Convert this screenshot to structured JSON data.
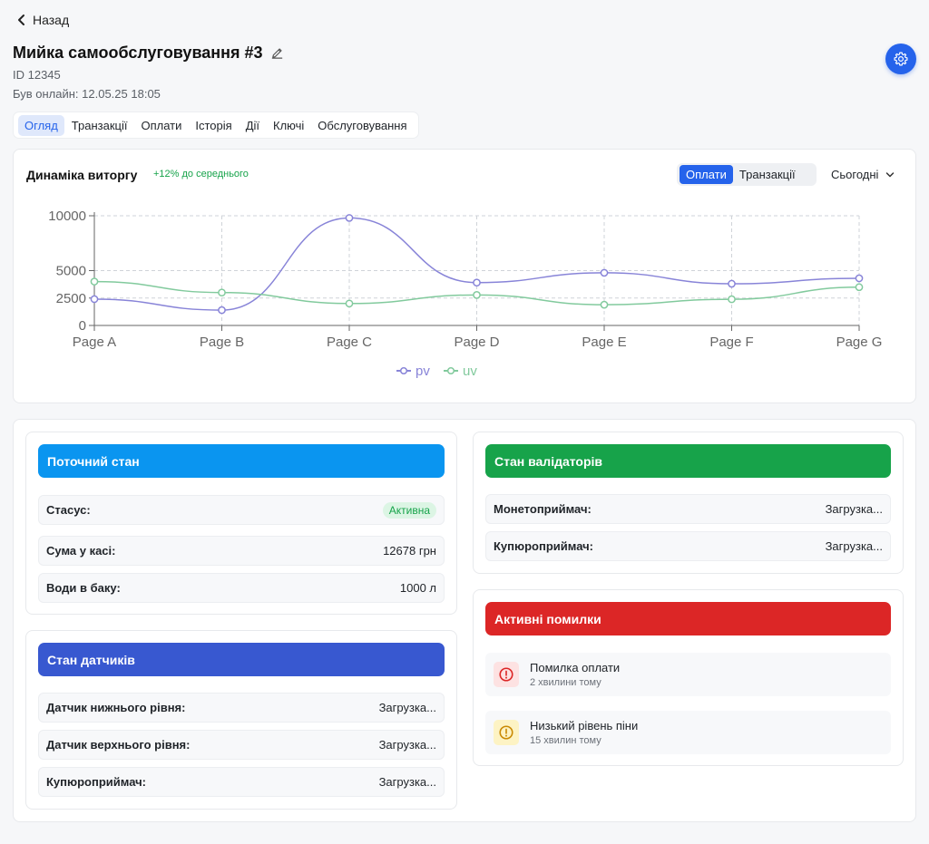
{
  "header": {
    "back_label": "Назад",
    "title": "Мийка самообслуговування #3",
    "id_text": "ID 12345",
    "online_text": "Був онлайн: 12.05.25 18:05",
    "accent": "#2563eb"
  },
  "tabs": [
    {
      "label": "Огляд",
      "active": true
    },
    {
      "label": "Транзакції"
    },
    {
      "label": "Оплати"
    },
    {
      "label": "Історія"
    },
    {
      "label": "Дії"
    },
    {
      "label": "Ключі"
    },
    {
      "label": "Обслуговування"
    }
  ],
  "revenue": {
    "title": "Динаміка виторгу",
    "delta": "+12% до середнього",
    "toggle": [
      "Оплати",
      "Транзакції"
    ],
    "toggle_active": "Оплати",
    "period": "Сьогодні"
  },
  "chart_data": {
    "type": "line",
    "categories": [
      "Page A",
      "Page B",
      "Page C",
      "Page D",
      "Page E",
      "Page F",
      "Page G"
    ],
    "series": [
      {
        "name": "pv",
        "color": "#8884d8",
        "values": [
          2400,
          1398,
          9800,
          3908,
          4800,
          3800,
          4300
        ]
      },
      {
        "name": "uv",
        "color": "#82ca9d",
        "values": [
          4000,
          3000,
          2000,
          2780,
          1890,
          2390,
          3490
        ]
      }
    ],
    "yticks": [
      0,
      2500,
      5000,
      10000
    ],
    "ylim": [
      0,
      10000
    ],
    "grid": true,
    "legend": "bottom",
    "smooth": true
  },
  "current_state": {
    "title": "Поточний стан",
    "color": "#0a95f0",
    "rows": [
      {
        "label": "Стасус:",
        "value": "Активна",
        "badge": true
      },
      {
        "label": "Сума у касі:",
        "value": "12678 грн"
      },
      {
        "label": "Води в баку:",
        "value": "1000 л"
      }
    ]
  },
  "sensors": {
    "title": "Стан датчиків",
    "color": "#3858d0",
    "rows": [
      {
        "label": "Датчик нижнього рівня:",
        "value": "Загрузка..."
      },
      {
        "label": "Датчик верхнього рівня:",
        "value": "Загрузка..."
      },
      {
        "label": "Купюроприймач:",
        "value": "Загрузка..."
      }
    ]
  },
  "validators": {
    "title": "Стан валідаторів",
    "color": "#17a34a",
    "rows": [
      {
        "label": "Монетоприймач:",
        "value": "Загрузка..."
      },
      {
        "label": "Купюроприймач:",
        "value": "Загрузка..."
      }
    ]
  },
  "errors": {
    "title": "Активні помилки",
    "color": "#dc2626",
    "items": [
      {
        "title": "Помилка оплати",
        "time": "2 хвилини тому",
        "icon": "alert-circle-icon",
        "color": "#dc2626",
        "bg": "#fde2e2"
      },
      {
        "title": "Низький рівень піни",
        "time": "15 хвилин тому",
        "icon": "warning-circle-icon",
        "color": "#ca8a04",
        "bg": "#fdf3c4"
      }
    ]
  }
}
